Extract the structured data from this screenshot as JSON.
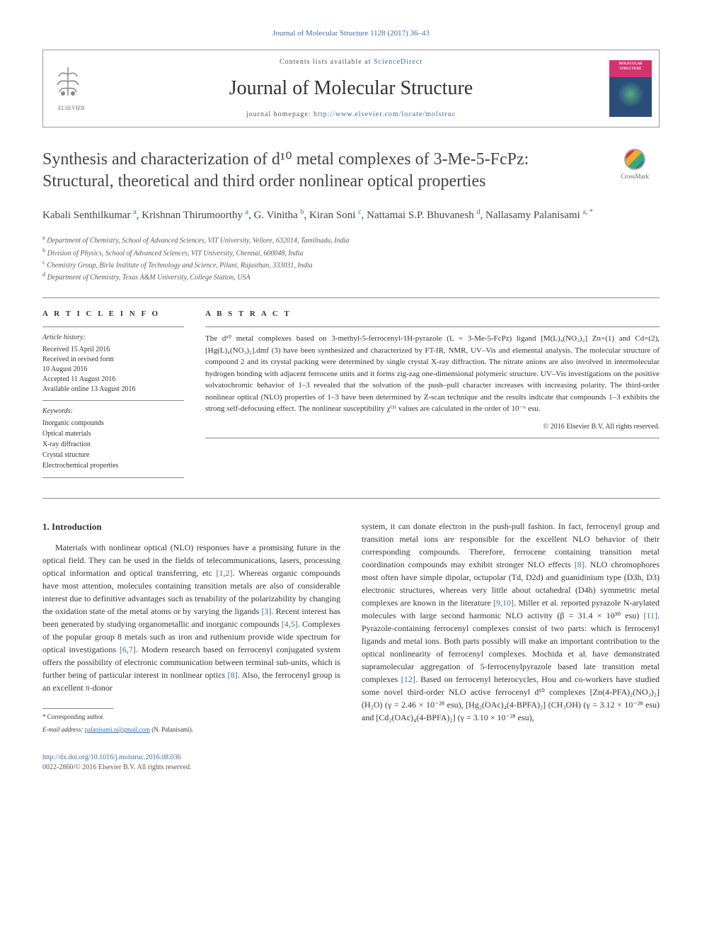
{
  "journal_ref": "Journal of Molecular Structure 1128 (2017) 36–43",
  "header": {
    "contents_prefix": "Contents lists available at ",
    "contents_link": "ScienceDirect",
    "journal_title": "Journal of Molecular Structure",
    "homepage_prefix": "journal homepage: ",
    "homepage_url": "http://www.elsevier.com/locate/molstruc",
    "publisher": "ELSEVIER",
    "cover_label": "MOLECULAR STRUCTURE"
  },
  "crossmark_label": "CrossMark",
  "article_title": "Synthesis and characterization of d¹⁰ metal complexes of 3-Me-5-FcPz: Structural, theoretical and third order nonlinear optical properties",
  "authors_html": "Kabali Senthilkumar <sup>a</sup>, Krishnan Thirumoorthy <sup>a</sup>, G. Vinitha <sup>b</sup>, Kiran Soni <sup>c</sup>, Nattamai S.P. Bhuvanesh <sup>d</sup>, Nallasamy Palanisami <sup>a, *</sup>",
  "affiliations": {
    "a": "Department of Chemistry, School of Advanced Sciences, VIT University, Vellore, 632014, Tamilnadu, India",
    "b": "Division of Physics, School of Advanced Sciences, VIT University, Chennai, 600048, India",
    "c": "Chemistry Group, Birla Institute of Technology and Science, Pilani, Rajasthan, 333031, India",
    "d": "Department of Chemistry, Texas A&M University, College Station, USA"
  },
  "article_info": {
    "heading": "A R T I C L E  I N F O",
    "history_label": "Article history:",
    "history": [
      "Received 15 April 2016",
      "Received in revised form",
      "10 August 2016",
      "Accepted 11 August 2016",
      "Available online 13 August 2016"
    ],
    "keywords_label": "Keywords:",
    "keywords": [
      "Inorganic compounds",
      "Optical materials",
      "X-ray diffraction",
      "Crystal structure",
      "Electrochemical properties"
    ]
  },
  "abstract": {
    "heading": "A B S T R A C T",
    "text": "The d¹⁰ metal complexes based on 3-methyl-5-ferrocenyl-1H-pyrazole (L = 3-Me-5-FcPz) ligand [M(L)₄(NO₃)₂] Zn=(1) and Cd=(2), [Hg(L)₄(NO₃)₂].dmf (3) have been synthesized and characterized by FT-IR, NMR, UV–Vis and elemental analysis. The molecular structure of compound 2 and its crystal packing were determined by single crystal X-ray diffraction. The nitrate anions are also involved in intermolecular hydrogen bonding with adjacent ferrocene units and it forms zig-zag one-dimensional polymeric structure. UV–Vis investigations on the positive solvatochromic behavior of 1–3 revealed that the solvation of the push–pull character increases with increasing polarity. The third-order nonlinear optical (NLO) properties of 1–3 have been determined by Z-scan technique and the results indicate that compounds 1–3 exhibits the strong self-defocusing effect. The nonlinear susceptibility χ⁽³⁾ values are calculated in the order of 10⁻⁶ esu.",
    "copyright": "© 2016 Elsevier B.V. All rights reserved."
  },
  "section1": {
    "heading": "1. Introduction",
    "col_left": "Materials with nonlinear optical (NLO) responses have a promising future in the optical field. They can be used in the fields of telecommunications, lasers, processing optical information and optical transferring, etc [1,2]. Whereas organic compounds have most attention, molecules containing transition metals are also of considerable interest due to definitive advantages such as tenability of the polarizability by changing the oxidation state of the metal atoms or by varying the ligands [3]. Recent interest has been generated by studying organometallic and inorganic compounds [4,5]. Complexes of the popular group 8 metals such as iron and ruthenium provide wide spectrum for optical investigations [6,7]. Modern research based on ferrocenyl conjugated system offers the possibility of electronic communication between terminal sub-units, which is further being of particular interest in nonlinear optics [8]. Also, the ferrocenyl group is an excellent π-donor",
    "col_right": "system, it can donate electron in the push-pull fashion. In fact, ferrocenyl group and transition metal ions are responsible for the excellent NLO behavior of their corresponding compounds. Therefore, ferrocene containing transition metal coordination compounds may exhibit stronger NLO effects [8]. NLO chromophores most often have simple dipolar, octupolar (Td, D2d) and guanidinium type (D3h, D3) electronic structures, whereas very little about octahedral (D4h) symmetric metal complexes are known in the literature [9,10]. Miller et al. reported pyrazole N-arylated molecules with large second harmonic NLO activity (β = 31.4 × 10³⁰ esu) [11]. Pyrazole-containing ferrocenyl complexes consist of two parts: which is ferrocenyl ligands and metal ions. Both parts possibly will make an important contribution to the optical nonlinearity of ferrocenyl complexes. Mochida et al. have demonstrated supramolecular aggregation of 5-ferrocenylpyrazole based late transition metal complexes [12]. Based on ferrocenyl heterocycles, Hou and co-workers have studied some novel third-order NLO active ferrocenyl d¹⁰ complexes [Zn(4-PFA)₂(NO₃)₂](H₂O) (γ = 2.46 × 10⁻²⁸ esu), [Hg₂(OAc)₄(4-BPFA)₂] (CH₃OH) (γ = 3.12 × 10⁻²⁸ esu) and [Cd₂(OAc)₄(4-BPFA)₂] (γ = 3.10 × 10⁻²⁸ esu),"
  },
  "footnote": {
    "corresp": "* Corresponding author.",
    "email_label": "E-mail address:",
    "email": "palanisami.n@gmail.com",
    "email_name": "(N. Palanisami)."
  },
  "footer": {
    "doi": "http://dx.doi.org/10.1016/j.molstruc.2016.08.036",
    "issn": "0022-2860/© 2016 Elsevier B.V. All rights reserved."
  },
  "colors": {
    "link": "#3a6ea5",
    "text": "#333333",
    "border": "#888888"
  }
}
